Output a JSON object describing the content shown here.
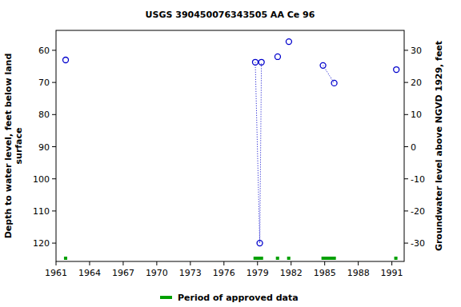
{
  "chart_data": {
    "type": "line",
    "title": "USGS 390450076343505 AA Ce  96",
    "y_label": [
      "Depth to water level, feet below land",
      "surface"
    ],
    "y2_label": "Groundwater level above NGVD 1929, feet",
    "xlim": [
      1961,
      1992.1
    ],
    "xticks": [
      1961,
      1964,
      1967,
      1970,
      1973,
      1976,
      1979,
      1982,
      1985,
      1988,
      1991
    ],
    "ylim": [
      53.8,
      125.7
    ],
    "yticks": [
      60,
      70,
      80,
      90,
      100,
      110,
      120
    ],
    "y2lim": [
      36.2,
      -35.7
    ],
    "y2ticks": [
      30,
      20,
      10,
      0,
      -10,
      -20,
      -30
    ],
    "series": [
      {
        "color": "#0000cc",
        "marker": "circle",
        "line_style": "dotted",
        "x": [
          1961.86,
          null,
          1978.8,
          1979.2,
          1979.35,
          null,
          1980.8,
          null,
          1981.8,
          null,
          1984.85,
          1985.85,
          null,
          1991.4
        ],
        "values": [
          63,
          null,
          63.7,
          120,
          63.7,
          null,
          62,
          null,
          57.3,
          null,
          64.7,
          70.2,
          null,
          66
        ]
      }
    ],
    "approved_periods": {
      "name": "Period of approved data",
      "color": "#00a000",
      "ranges": [
        [
          1961.71,
          1962.0
        ],
        [
          1978.64,
          1979.5
        ],
        [
          1980.64,
          1980.93
        ],
        [
          1981.64,
          1981.93
        ],
        [
          1984.71,
          1986.0
        ],
        [
          1991.21,
          1991.5
        ]
      ]
    }
  }
}
